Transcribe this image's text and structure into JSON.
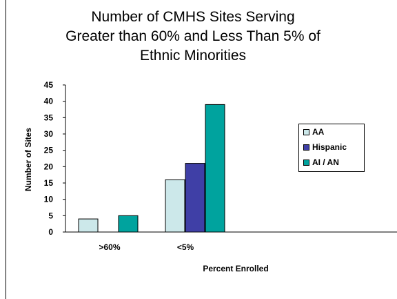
{
  "chart_data": {
    "type": "bar",
    "title_lines": [
      "Number of CMHS Sites Serving",
      "Greater than 60% and Less Than 5% of",
      "Ethnic Minorities"
    ],
    "xlabel": "Percent Enrolled",
    "ylabel": "Number of Sites",
    "categories": [
      ">60%",
      "<5%"
    ],
    "series": [
      {
        "name": "AA",
        "color": "#cce8ea",
        "values": [
          4,
          16
        ]
      },
      {
        "name": "Hispanic",
        "color": "#3f3fa6",
        "values": [
          0,
          21
        ]
      },
      {
        "name": "AI / AN",
        "color": "#00a39e",
        "values": [
          5,
          39
        ]
      }
    ],
    "ylim": [
      0,
      45
    ],
    "yticks": [
      0,
      5,
      10,
      15,
      20,
      25,
      30,
      35,
      40,
      45
    ],
    "grid": false,
    "legend_position": "right"
  }
}
